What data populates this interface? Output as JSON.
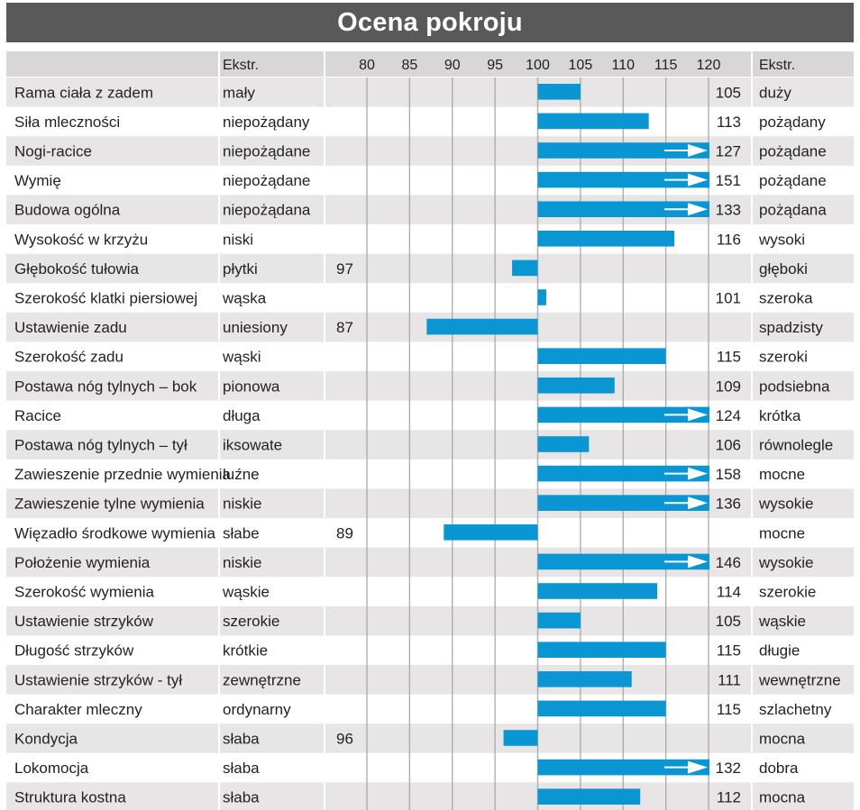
{
  "chart_data": {
    "type": "bar",
    "title": "Ocena pokroju",
    "header": {
      "left_extreme": "Ekstr.",
      "right_extreme": "Ekstr."
    },
    "x_ticks": [
      80,
      85,
      90,
      95,
      100,
      105,
      110,
      115,
      120
    ],
    "baseline": 100,
    "xlim": [
      80,
      120
    ],
    "bar_color": "#0a96d2",
    "rows": [
      {
        "trait": "Rama ciała z zadem",
        "low": "mały",
        "value": 105,
        "high": "duży"
      },
      {
        "trait": "Siła mleczności",
        "low": "niepożądany",
        "value": 113,
        "high": "pożądany"
      },
      {
        "trait": "Nogi-racice",
        "low": "niepożądane",
        "value": 127,
        "high": "pożądane"
      },
      {
        "trait": "Wymię",
        "low": "niepożądane",
        "value": 151,
        "high": "pożądane"
      },
      {
        "trait": "Budowa ogólna",
        "low": "niepożądana",
        "value": 133,
        "high": "pożądana"
      },
      {
        "trait": "Wysokość w krzyżu",
        "low": "niski",
        "value": 116,
        "high": "wysoki"
      },
      {
        "trait": "Głębokość tułowia",
        "low": "płytki",
        "value": 97,
        "high": "głęboki"
      },
      {
        "trait": "Szerokość klatki piersiowej",
        "low": "wąska",
        "value": 101,
        "high": "szeroka"
      },
      {
        "trait": "Ustawienie zadu",
        "low": "uniesiony",
        "value": 87,
        "high": "spadzisty"
      },
      {
        "trait": "Szerokość zadu",
        "low": "wąski",
        "value": 115,
        "high": "szeroki"
      },
      {
        "trait": "Postawa nóg tylnych –  bok",
        "low": "pionowa",
        "value": 109,
        "high": "podsiebna"
      },
      {
        "trait": "Racice",
        "low": "długa",
        "value": 124,
        "high": "krótka"
      },
      {
        "trait": "Postawa nóg tylnych –  tył",
        "low": "iksowate",
        "value": 106,
        "high": "równolegle"
      },
      {
        "trait": "Zawieszenie przednie wymienia",
        "low": "luźne",
        "value": 158,
        "high": "mocne"
      },
      {
        "trait": "Zawieszenie tylne wymienia",
        "low": "niskie",
        "value": 136,
        "high": "wysokie"
      },
      {
        "trait": "Więzadło środkowe wymienia",
        "low": "słabe",
        "value": 89,
        "high": "mocne"
      },
      {
        "trait": "Położenie wymienia",
        "low": "niskie",
        "value": 146,
        "high": "wysokie"
      },
      {
        "trait": "Szerokość wymienia",
        "low": "wąskie",
        "value": 114,
        "high": "szerokie"
      },
      {
        "trait": "Ustawienie strzyków",
        "low": "szerokie",
        "value": 105,
        "high": "wąskie"
      },
      {
        "trait": "Długość strzyków",
        "low": "krótkie",
        "value": 115,
        "high": "długie"
      },
      {
        "trait": "Ustawienie strzyków - tył",
        "low": "zewnętrzne",
        "value": 111,
        "high": "wewnętrzne"
      },
      {
        "trait": "Charakter mleczny",
        "low": "ordynarny",
        "value": 115,
        "high": "szlachetny"
      },
      {
        "trait": "Kondycja",
        "low": "słaba",
        "value": 96,
        "high": "mocna"
      },
      {
        "trait": "Lokomocja",
        "low": "słaba",
        "value": 132,
        "high": "dobra"
      },
      {
        "trait": "Struktura kostna",
        "low": "słaba",
        "value": 112,
        "high": "mocna"
      }
    ]
  }
}
